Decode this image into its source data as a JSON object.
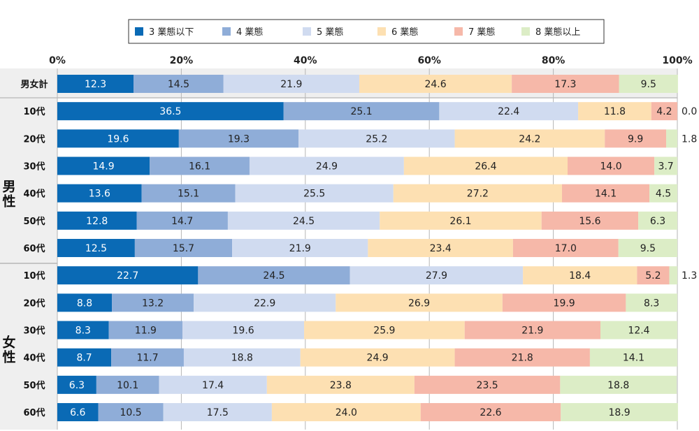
{
  "chart_data": {
    "type": "bar",
    "orientation": "horizontal",
    "stacked": true,
    "xlim": [
      0,
      100
    ],
    "x_ticks": [
      "0%",
      "20%",
      "40%",
      "60%",
      "80%",
      "100%"
    ],
    "legend_placement": "top",
    "grid": true,
    "group_labels": {
      "male": "男性",
      "female": "女性"
    },
    "categories": [
      "男女計",
      "10代",
      "20代",
      "30代",
      "40代",
      "50代",
      "60代",
      "10代",
      "20代",
      "30代",
      "40代",
      "50代",
      "60代"
    ],
    "category_groups": [
      "total",
      "male",
      "male",
      "male",
      "male",
      "male",
      "male",
      "female",
      "female",
      "female",
      "female",
      "female",
      "female"
    ],
    "series": [
      {
        "name": "3 業態以下",
        "color": "#0a6ab5",
        "values": [
          12.3,
          36.5,
          19.6,
          14.9,
          13.6,
          12.8,
          12.5,
          22.7,
          8.8,
          8.3,
          8.7,
          6.3,
          6.6
        ]
      },
      {
        "name": "4 業態",
        "color": "#8fadd8",
        "values": [
          14.5,
          25.1,
          19.3,
          16.1,
          15.1,
          14.7,
          15.7,
          24.5,
          13.2,
          11.9,
          11.7,
          10.1,
          10.5
        ]
      },
      {
        "name": "5 業態",
        "color": "#d0dbf0",
        "values": [
          21.9,
          22.4,
          25.2,
          24.9,
          25.5,
          24.5,
          21.9,
          27.9,
          22.9,
          19.6,
          18.8,
          17.4,
          17.5
        ]
      },
      {
        "name": "6 業態",
        "color": "#fde0b2",
        "values": [
          24.6,
          11.8,
          24.2,
          26.4,
          27.2,
          26.1,
          23.4,
          18.4,
          26.9,
          25.9,
          24.9,
          23.8,
          24.0
        ]
      },
      {
        "name": "7 業態",
        "color": "#f6b8a9",
        "values": [
          17.3,
          4.2,
          9.9,
          14.0,
          14.1,
          15.6,
          17.0,
          5.2,
          19.9,
          21.9,
          21.8,
          23.5,
          22.6
        ]
      },
      {
        "name": "8 業態以上",
        "color": "#dcedc6",
        "values": [
          9.5,
          0.0,
          1.8,
          3.7,
          4.5,
          6.3,
          9.5,
          1.3,
          8.3,
          12.4,
          14.1,
          18.8,
          18.9
        ]
      }
    ],
    "value_labels": [
      [
        "12.3",
        "36.5",
        "19.6",
        "14.9",
        "13.6",
        "12.8",
        "12.5",
        "22.7",
        "8.8",
        "8.3",
        "8.7",
        "6.3",
        "6.6"
      ],
      [
        "14.5",
        "25.1",
        "19.3",
        "16.1",
        "15.1",
        "14.7",
        "15.7",
        "24.5",
        "13.2",
        "11.9",
        "11.7",
        "10.1",
        "10.5"
      ],
      [
        "21.9",
        "22.4",
        "25.2",
        "24.9",
        "25.5",
        "24.5",
        "21.9",
        "27.9",
        "22.9",
        "19.6",
        "18.8",
        "17.4",
        "17.5"
      ],
      [
        "24.6",
        "11.8",
        "24.2",
        "26.4",
        "27.2",
        "26.1",
        "23.4",
        "18.4",
        "26.9",
        "25.9",
        "24.9",
        "23.8",
        "24.0"
      ],
      [
        "17.3",
        "4.2",
        "9.9",
        "14.0",
        "14.1",
        "15.6",
        "17.0",
        "5.2",
        "19.9",
        "21.9",
        "21.8",
        "23.5",
        "22.6"
      ],
      [
        "9.5",
        "0.0",
        "1.8",
        "3.7",
        "4.5",
        "6.3",
        "9.5",
        "1.3",
        "8.3",
        "12.4",
        "14.1",
        "18.8",
        "18.9"
      ]
    ]
  }
}
